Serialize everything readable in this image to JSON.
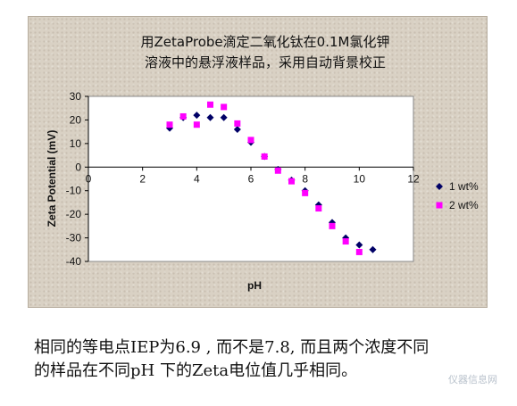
{
  "chart_data": {
    "type": "scatter",
    "title": {
      "line1": "用ZetaProbe滴定二氧化钛在0.1M氯化钾",
      "line2": "溶液中的悬浮液样品，采用自动背景校正"
    },
    "xlabel": "pH",
    "ylabel": "Zeta Potential (mV)",
    "xlim": [
      0,
      12
    ],
    "ylim": [
      -40,
      30
    ],
    "xticks": [
      0,
      2,
      4,
      6,
      8,
      10,
      12
    ],
    "yticks": [
      30,
      20,
      10,
      0,
      -10,
      -20,
      -30,
      -40
    ],
    "grid": false,
    "legend_position": "right",
    "series": [
      {
        "name": "1 wt%",
        "marker": "diamond",
        "color": "#000066",
        "points": [
          [
            3.0,
            16.5
          ],
          [
            3.5,
            21
          ],
          [
            4.0,
            22
          ],
          [
            4.5,
            21
          ],
          [
            5.0,
            21
          ],
          [
            5.5,
            16
          ],
          [
            6.0,
            10.5
          ],
          [
            6.5,
            4.5
          ],
          [
            7.0,
            -1
          ],
          [
            7.5,
            -5.5
          ],
          [
            8.0,
            -10
          ],
          [
            8.5,
            -16
          ],
          [
            9.0,
            -23.5
          ],
          [
            9.5,
            -30
          ],
          [
            10.0,
            -33
          ],
          [
            10.5,
            -35
          ]
        ]
      },
      {
        "name": "2 wt%",
        "marker": "square",
        "color": "#ff00ff",
        "points": [
          [
            3.0,
            18
          ],
          [
            3.5,
            21.5
          ],
          [
            4.0,
            18
          ],
          [
            4.5,
            26.5
          ],
          [
            5.0,
            25.5
          ],
          [
            5.5,
            18.5
          ],
          [
            6.0,
            11.5
          ],
          [
            6.5,
            4.5
          ],
          [
            7.0,
            -1.5
          ],
          [
            7.5,
            -6
          ],
          [
            8.0,
            -11
          ],
          [
            8.5,
            -17.5
          ],
          [
            9.0,
            -25
          ],
          [
            9.5,
            -31.5
          ],
          [
            10.0,
            -36
          ]
        ]
      }
    ]
  },
  "caption": {
    "line1": "相同的等电点IEP为6.9 , 而不是7.8, 而且两个浓度不同",
    "line2": "的样品在不同pH 下的Zeta电位值几乎相同。"
  },
  "watermark": "仪器信息网"
}
